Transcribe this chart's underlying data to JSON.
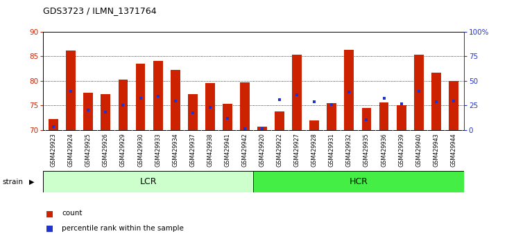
{
  "title": "GDS3723 / ILMN_1371764",
  "samples": [
    "GSM429923",
    "GSM429924",
    "GSM429925",
    "GSM429926",
    "GSM429929",
    "GSM429930",
    "GSM429933",
    "GSM429934",
    "GSM429937",
    "GSM429938",
    "GSM429941",
    "GSM429942",
    "GSM429920",
    "GSM429922",
    "GSM429927",
    "GSM429928",
    "GSM429931",
    "GSM429932",
    "GSM429935",
    "GSM429936",
    "GSM429939",
    "GSM429940",
    "GSM429943",
    "GSM429944"
  ],
  "bar_heights": [
    72.2,
    86.2,
    77.6,
    77.3,
    80.3,
    83.5,
    84.0,
    82.3,
    77.3,
    79.5,
    75.3,
    79.7,
    70.7,
    73.8,
    85.3,
    71.9,
    75.4,
    86.3,
    74.5,
    75.6,
    75.0,
    85.3,
    81.6,
    80.0
  ],
  "blue_markers": [
    70.7,
    77.8,
    74.1,
    73.6,
    75.1,
    76.5,
    76.8,
    75.9,
    73.5,
    74.6,
    72.4,
    70.2,
    70.2,
    76.1,
    77.1,
    75.8,
    75.2,
    77.7,
    72.0,
    76.5,
    75.3,
    77.9,
    75.7,
    75.9
  ],
  "ylim": [
    70,
    90
  ],
  "yticks": [
    70,
    75,
    80,
    85,
    90
  ],
  "y2ticks": [
    0,
    25,
    50,
    75,
    100
  ],
  "bar_color": "#CC2200",
  "blue_color": "#2233CC",
  "lcr_color": "#CCFFCC",
  "hcr_color": "#44EE44",
  "tick_bg_color": "#D0D0D0",
  "ylabel_color": "#CC2200",
  "y2label_color": "#2233CC",
  "lcr_label": "LCR",
  "hcr_label": "HCR",
  "strain_label": "strain",
  "legend_count": "count",
  "legend_percentile": "percentile rank within the sample"
}
